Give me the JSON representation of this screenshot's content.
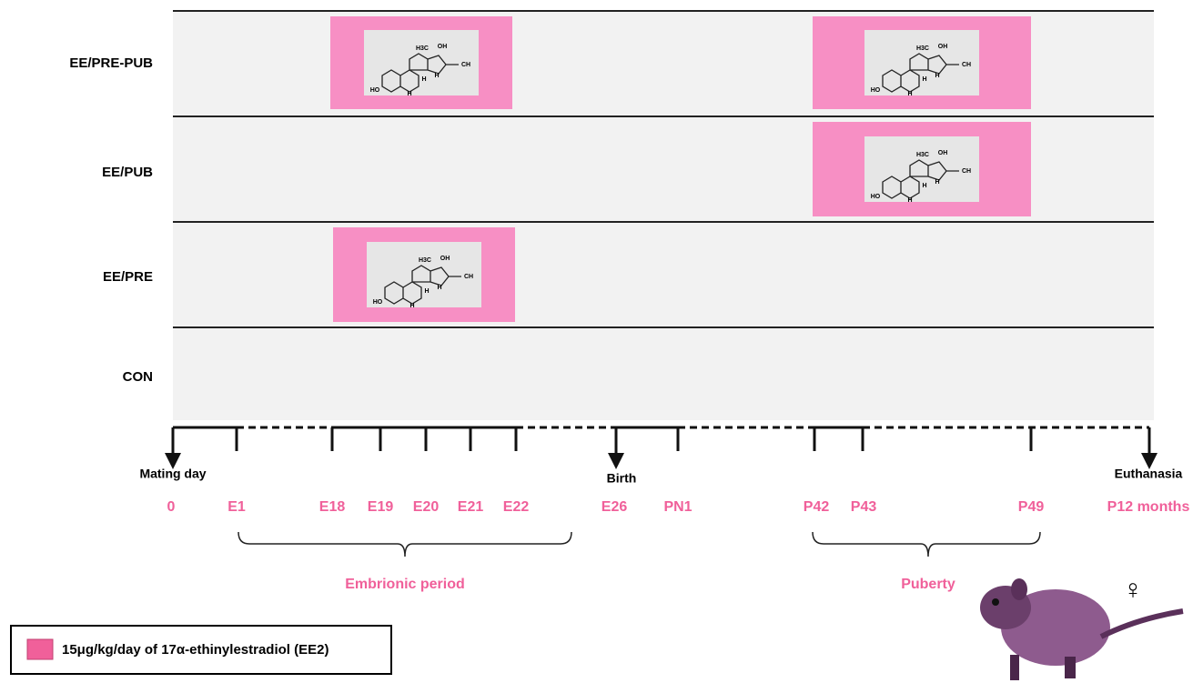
{
  "groups": [
    "EE/PRE-PUB",
    "EE/PUB",
    "EE/PRE",
    "CON"
  ],
  "molecule": {
    "labels": [
      "H3C",
      "OH",
      "CH",
      "HO",
      "H",
      "H",
      "H"
    ]
  },
  "events": [
    "Mating day",
    "Birth",
    "Euthanasia"
  ],
  "timepoints": [
    "0",
    "E1",
    "E18",
    "E19",
    "E20",
    "E21",
    "E22",
    "E26",
    "PN1",
    "P42",
    "P43",
    "P49",
    "P12 months"
  ],
  "periods": [
    "Embrionic period",
    "Puberty"
  ],
  "legend": "15μg/kg/day of 17α-ethinylestradiol (EE2)",
  "female_symbol": "♀"
}
